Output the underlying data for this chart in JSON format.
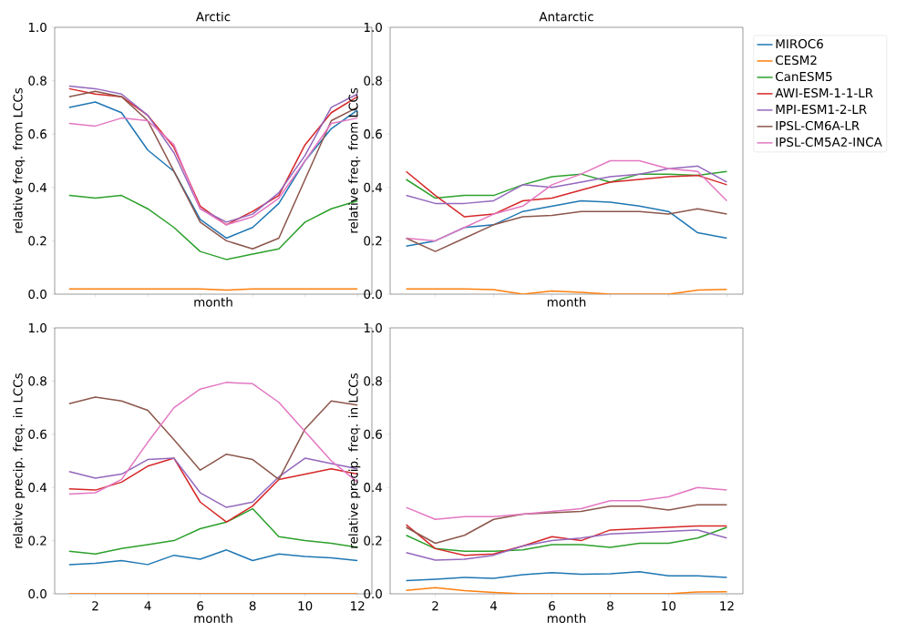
{
  "chart_data": [
    {
      "type": "line",
      "title": "Arctic",
      "xlabel": "month",
      "ylabel": "relative freq. from LCCs",
      "x": [
        1,
        2,
        3,
        4,
        5,
        6,
        7,
        8,
        9,
        10,
        11,
        12
      ],
      "xlim": [
        0.45,
        12.55
      ],
      "ylim": [
        0,
        1
      ],
      "xticks": [
        2,
        4,
        6,
        8,
        10,
        12
      ],
      "yticks": [
        {
          "value": 0,
          "label": "0.0"
        },
        {
          "value": 0.2,
          "label": "0.2"
        },
        {
          "value": 0.4,
          "label": "0.4"
        },
        {
          "value": 0.6,
          "label": "0.6"
        },
        {
          "value": 0.8,
          "label": "0.8"
        },
        {
          "value": 1,
          "label": "1.0"
        }
      ],
      "tick_labels": "y",
      "series": [
        {
          "color": "#1f77b4",
          "values": [
            0.7,
            0.72,
            0.68,
            0.54,
            0.46,
            0.28,
            0.21,
            0.25,
            0.34,
            0.5,
            0.62,
            0.69
          ]
        },
        {
          "color": "#ff7f0e",
          "values": [
            0.02,
            0.02,
            0.02,
            0.02,
            0.02,
            0.02,
            0.015,
            0.02,
            0.02,
            0.02,
            0.02,
            0.02
          ]
        },
        {
          "color": "#2ca02c",
          "values": [
            0.37,
            0.36,
            0.37,
            0.32,
            0.25,
            0.16,
            0.13,
            0.15,
            0.17,
            0.27,
            0.32,
            0.35
          ]
        },
        {
          "color": "#d62728",
          "values": [
            0.77,
            0.75,
            0.74,
            0.67,
            0.55,
            0.33,
            0.26,
            0.31,
            0.37,
            0.56,
            0.68,
            0.74
          ]
        },
        {
          "color": "#9467bd",
          "values": [
            0.78,
            0.77,
            0.75,
            0.67,
            0.53,
            0.32,
            0.27,
            0.3,
            0.38,
            0.52,
            0.7,
            0.75
          ]
        },
        {
          "color": "#8c564b",
          "values": [
            0.74,
            0.76,
            0.74,
            0.65,
            0.46,
            0.27,
            0.2,
            0.17,
            0.21,
            0.43,
            0.65,
            0.7
          ]
        },
        {
          "color": "#e377c2",
          "values": [
            0.64,
            0.63,
            0.66,
            0.65,
            0.56,
            0.32,
            0.26,
            0.29,
            0.36,
            0.5,
            0.64,
            0.66
          ]
        }
      ]
    },
    {
      "type": "line",
      "title": "Antarctic",
      "xlabel": "month",
      "ylabel": "relative freq. from LCCs",
      "x": [
        1,
        2,
        3,
        4,
        5,
        6,
        7,
        8,
        9,
        10,
        11,
        12
      ],
      "xlim": [
        0.45,
        12.55
      ],
      "ylim": [
        0,
        1
      ],
      "xticks": [
        2,
        4,
        6,
        8,
        10,
        12
      ],
      "yticks": [
        {
          "value": 0,
          "label": "0.0"
        },
        {
          "value": 0.2,
          "label": "0.2"
        },
        {
          "value": 0.4,
          "label": "0.4"
        },
        {
          "value": 0.6,
          "label": "0.6"
        },
        {
          "value": 0.8,
          "label": "0.8"
        },
        {
          "value": 1,
          "label": "1.0"
        }
      ],
      "tick_labels": "y",
      "legend": "right",
      "series": [
        {
          "name": "MIROC6",
          "color": "#1f77b4",
          "values": [
            0.18,
            0.2,
            0.25,
            0.26,
            0.31,
            0.33,
            0.35,
            0.345,
            0.33,
            0.31,
            0.23,
            0.21
          ]
        },
        {
          "name": "CESM2",
          "color": "#ff7f0e",
          "values": [
            0.02,
            0.02,
            0.02,
            0.017,
            0.0,
            0.012,
            0.007,
            0.0,
            0.0,
            0.0,
            0.015,
            0.018
          ]
        },
        {
          "name": "CanESM5",
          "color": "#2ca02c",
          "values": [
            0.43,
            0.36,
            0.37,
            0.37,
            0.41,
            0.44,
            0.45,
            0.42,
            0.45,
            0.45,
            0.445,
            0.46
          ]
        },
        {
          "name": "AWI-ESM-1-1-LR",
          "color": "#d62728",
          "values": [
            0.46,
            0.37,
            0.29,
            0.3,
            0.35,
            0.36,
            0.39,
            0.42,
            0.43,
            0.44,
            0.445,
            0.41
          ]
        },
        {
          "name": "MPI-ESM1-2-LR",
          "color": "#9467bd",
          "values": [
            0.37,
            0.34,
            0.34,
            0.35,
            0.41,
            0.4,
            0.42,
            0.44,
            0.45,
            0.47,
            0.48,
            0.42
          ]
        },
        {
          "name": "IPSL-CM6A-LR",
          "color": "#8c564b",
          "values": [
            0.21,
            0.16,
            0.21,
            0.26,
            0.29,
            0.295,
            0.31,
            0.31,
            0.31,
            0.3,
            0.32,
            0.3
          ]
        },
        {
          "name": "IPSL-CM5A2-INCA",
          "color": "#e377c2",
          "values": [
            0.21,
            0.2,
            0.25,
            0.3,
            0.33,
            0.41,
            0.45,
            0.5,
            0.5,
            0.47,
            0.46,
            0.35
          ]
        }
      ]
    },
    {
      "type": "line",
      "xlabel": "month",
      "ylabel": "relative precip. freq. in LCCs",
      "x": [
        1,
        2,
        3,
        4,
        5,
        6,
        7,
        8,
        9,
        10,
        11,
        12
      ],
      "xlim": [
        0.45,
        12.55
      ],
      "ylim": [
        0,
        1
      ],
      "xticks": [
        2,
        4,
        6,
        8,
        10,
        12
      ],
      "yticks": [
        {
          "value": 0,
          "label": "0.0"
        },
        {
          "value": 0.2,
          "label": "0.2"
        },
        {
          "value": 0.4,
          "label": "0.4"
        },
        {
          "value": 0.6,
          "label": "0.6"
        },
        {
          "value": 0.8,
          "label": "0.8"
        },
        {
          "value": 1,
          "label": "1.0"
        }
      ],
      "series": [
        {
          "color": "#1f77b4",
          "values": [
            0.11,
            0.115,
            0.125,
            0.11,
            0.145,
            0.13,
            0.165,
            0.125,
            0.15,
            0.14,
            0.135,
            0.125
          ]
        },
        {
          "color": "#ff7f0e",
          "values": [
            0,
            0,
            0,
            0,
            0,
            0,
            0,
            0,
            0,
            0,
            0,
            0
          ]
        },
        {
          "color": "#2ca02c",
          "values": [
            0.16,
            0.15,
            0.17,
            0.185,
            0.2,
            0.245,
            0.27,
            0.32,
            0.215,
            0.2,
            0.19,
            0.175
          ]
        },
        {
          "color": "#d62728",
          "values": [
            0.395,
            0.39,
            0.42,
            0.48,
            0.51,
            0.345,
            0.27,
            0.33,
            0.43,
            0.45,
            0.47,
            0.45
          ]
        },
        {
          "color": "#9467bd",
          "values": [
            0.46,
            0.435,
            0.45,
            0.505,
            0.51,
            0.38,
            0.325,
            0.345,
            0.44,
            0.51,
            0.49,
            0.47
          ]
        },
        {
          "color": "#8c564b",
          "values": [
            0.715,
            0.74,
            0.725,
            0.69,
            0.58,
            0.465,
            0.525,
            0.505,
            0.43,
            0.62,
            0.725,
            0.71
          ]
        },
        {
          "color": "#e377c2",
          "values": [
            0.375,
            0.38,
            0.43,
            0.57,
            0.7,
            0.77,
            0.795,
            0.79,
            0.72,
            0.61,
            0.5,
            0.42
          ]
        }
      ]
    },
    {
      "type": "line",
      "xlabel": "month",
      "ylabel": "relative precip. freq. in LCCs",
      "x": [
        1,
        2,
        3,
        4,
        5,
        6,
        7,
        8,
        9,
        10,
        11,
        12
      ],
      "xlim": [
        0.45,
        12.55
      ],
      "ylim": [
        0,
        1
      ],
      "xticks": [
        2,
        4,
        6,
        8,
        10,
        12
      ],
      "yticks": [
        {
          "value": 0,
          "label": "0.0"
        },
        {
          "value": 0.2,
          "label": "0.2"
        },
        {
          "value": 0.4,
          "label": "0.4"
        },
        {
          "value": 0.6,
          "label": "0.6"
        },
        {
          "value": 0.8,
          "label": "0.8"
        },
        {
          "value": 1,
          "label": "1.0"
        }
      ],
      "series": [
        {
          "color": "#1f77b4",
          "values": [
            0.05,
            0.055,
            0.062,
            0.058,
            0.072,
            0.08,
            0.074,
            0.075,
            0.083,
            0.068,
            0.068,
            0.062
          ]
        },
        {
          "color": "#ff7f0e",
          "values": [
            0.013,
            0.023,
            0.012,
            0.005,
            0.0,
            0.0,
            0.0,
            0.0,
            0.0,
            0.0,
            0.007,
            0.008
          ]
        },
        {
          "color": "#2ca02c",
          "values": [
            0.22,
            0.17,
            0.16,
            0.16,
            0.165,
            0.185,
            0.185,
            0.175,
            0.19,
            0.19,
            0.21,
            0.25
          ]
        },
        {
          "color": "#d62728",
          "values": [
            0.26,
            0.17,
            0.145,
            0.15,
            0.18,
            0.215,
            0.2,
            0.24,
            0.245,
            0.25,
            0.255,
            0.255
          ]
        },
        {
          "color": "#9467bd",
          "values": [
            0.155,
            0.127,
            0.13,
            0.145,
            0.18,
            0.2,
            0.21,
            0.225,
            0.23,
            0.235,
            0.24,
            0.21
          ]
        },
        {
          "color": "#8c564b",
          "values": [
            0.25,
            0.19,
            0.22,
            0.28,
            0.3,
            0.305,
            0.31,
            0.33,
            0.33,
            0.315,
            0.335,
            0.335
          ]
        },
        {
          "color": "#e377c2",
          "values": [
            0.325,
            0.28,
            0.29,
            0.29,
            0.3,
            0.31,
            0.32,
            0.35,
            0.35,
            0.365,
            0.4,
            0.39
          ]
        }
      ]
    }
  ]
}
